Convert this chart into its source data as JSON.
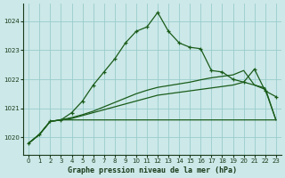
{
  "title": "Graphe pression niveau de la mer (hPa)",
  "background_color": "#cce8e8",
  "grid_color": "#99cccc",
  "line_color": "#1a5c1a",
  "x_ticks": [
    0,
    1,
    2,
    3,
    4,
    5,
    6,
    7,
    8,
    9,
    10,
    11,
    12,
    13,
    14,
    15,
    16,
    17,
    18,
    19,
    20,
    21,
    22,
    23
  ],
  "y_ticks": [
    1020,
    1021,
    1022,
    1023,
    1024
  ],
  "ylim": [
    1019.4,
    1024.6
  ],
  "xlim": [
    -0.5,
    23.5
  ],
  "line1_x": [
    0,
    1,
    2,
    3,
    4,
    5,
    6,
    7,
    8,
    9,
    10,
    11,
    12,
    13,
    14,
    15,
    16,
    17,
    18,
    19,
    20,
    21,
    22,
    23
  ],
  "line1_y": [
    1019.8,
    1020.1,
    1020.55,
    1020.6,
    1020.85,
    1021.25,
    1021.8,
    1022.25,
    1022.7,
    1023.25,
    1023.65,
    1023.8,
    1024.3,
    1023.65,
    1023.25,
    1023.1,
    1023.05,
    1022.3,
    1022.25,
    1022.0,
    1021.9,
    1022.35,
    1021.6,
    1021.4
  ],
  "line2_x": [
    0,
    1,
    2,
    3,
    4,
    5,
    6,
    7,
    8,
    9,
    10,
    11,
    12,
    13,
    14,
    15,
    16,
    17,
    18,
    19,
    20,
    21,
    22,
    23
  ],
  "line2_y": [
    1019.8,
    1020.1,
    1020.55,
    1020.6,
    1020.6,
    1020.6,
    1020.6,
    1020.6,
    1020.6,
    1020.6,
    1020.6,
    1020.6,
    1020.6,
    1020.6,
    1020.6,
    1020.6,
    1020.6,
    1020.6,
    1020.6,
    1020.6,
    1020.6,
    1020.6,
    1020.6,
    1020.6
  ],
  "line3_x": [
    0,
    1,
    2,
    3,
    4,
    5,
    6,
    7,
    8,
    9,
    10,
    11,
    12,
    13,
    14,
    15,
    16,
    17,
    18,
    19,
    20,
    21,
    22,
    23
  ],
  "line3_y": [
    1019.8,
    1020.1,
    1020.55,
    1020.6,
    1020.65,
    1020.75,
    1020.85,
    1020.95,
    1021.05,
    1021.15,
    1021.25,
    1021.35,
    1021.45,
    1021.5,
    1021.55,
    1021.6,
    1021.65,
    1021.7,
    1021.75,
    1021.8,
    1021.9,
    1021.8,
    1021.7,
    1020.6
  ],
  "line4_x": [
    0,
    1,
    2,
    3,
    4,
    5,
    6,
    7,
    8,
    9,
    10,
    11,
    12,
    13,
    14,
    15,
    16,
    17,
    18,
    19,
    20,
    21,
    22,
    23
  ],
  "line4_y": [
    1019.8,
    1020.1,
    1020.55,
    1020.6,
    1020.68,
    1020.78,
    1020.9,
    1021.05,
    1021.2,
    1021.35,
    1021.5,
    1021.62,
    1021.72,
    1021.78,
    1021.84,
    1021.9,
    1021.98,
    1022.05,
    1022.1,
    1022.15,
    1022.3,
    1021.8,
    1021.65,
    1020.6
  ]
}
